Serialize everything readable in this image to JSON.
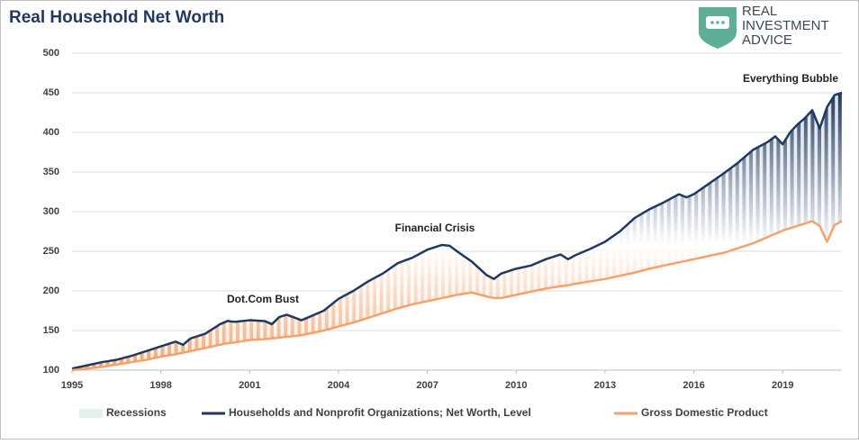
{
  "chart_data": {
    "type": "line",
    "title": "Real Household Net Worth",
    "logo": [
      "REAL",
      "INVESTMENT",
      "ADVICE"
    ],
    "x": [
      1995.0,
      1995.5,
      1996.0,
      1996.5,
      1997.0,
      1997.5,
      1998.0,
      1998.5,
      1998.75,
      1999.0,
      1999.5,
      2000.0,
      2000.25,
      2000.5,
      2001.0,
      2001.5,
      2001.75,
      2002.0,
      2002.25,
      2002.75,
      2003.0,
      2003.5,
      2004.0,
      2004.5,
      2005.0,
      2005.5,
      2006.0,
      2006.5,
      2007.0,
      2007.5,
      2007.75,
      2008.0,
      2008.5,
      2009.0,
      2009.25,
      2009.5,
      2010.0,
      2010.5,
      2011.0,
      2011.5,
      2011.75,
      2012.0,
      2012.5,
      2013.0,
      2013.5,
      2014.0,
      2014.5,
      2015.0,
      2015.5,
      2015.75,
      2016.0,
      2016.5,
      2017.0,
      2017.5,
      2018.0,
      2018.5,
      2018.75,
      2019.0,
      2019.25,
      2019.5,
      2019.75,
      2020.0,
      2020.25,
      2020.5,
      2020.75,
      2021.0
    ],
    "series": [
      {
        "name": "Households and Nonprofit Organizations; Net Worth, Level",
        "color": "#1f3a60",
        "values": [
          102,
          106,
          110,
          113,
          118,
          124,
          130,
          136,
          132,
          140,
          146,
          158,
          162,
          161,
          163,
          162,
          158,
          167,
          170,
          163,
          167,
          175,
          190,
          200,
          212,
          222,
          235,
          242,
          252,
          258,
          257,
          250,
          237,
          220,
          215,
          222,
          228,
          232,
          240,
          246,
          240,
          245,
          253,
          262,
          275,
          292,
          303,
          312,
          322,
          318,
          322,
          335,
          348,
          362,
          378,
          388,
          395,
          385,
          400,
          410,
          418,
          428,
          405,
          432,
          447,
          450
        ]
      },
      {
        "name": "Gross Domestic Product",
        "color": "#f4a26b",
        "values": [
          100,
          102,
          104,
          107,
          110,
          113,
          117,
          120,
          122,
          124,
          128,
          132,
          134,
          135,
          138,
          139,
          140,
          141,
          142,
          144,
          146,
          150,
          155,
          160,
          166,
          172,
          178,
          183,
          187,
          191,
          193,
          195,
          198,
          193,
          191,
          191,
          195,
          199,
          203,
          206,
          207,
          209,
          212,
          215,
          219,
          223,
          228,
          232,
          236,
          238,
          240,
          244,
          248,
          254,
          260,
          268,
          272,
          276,
          279,
          282,
          285,
          288,
          282,
          262,
          283,
          288
        ]
      }
    ],
    "recessions": {
      "name": "Recessions",
      "color": "#dff2ee"
    },
    "annotations": [
      "Dot.Com Bust",
      "Financial Crisis",
      "Everything Bubble"
    ],
    "xlim": [
      1995,
      2021
    ],
    "xticks": [
      1995,
      1998,
      2001,
      2004,
      2007,
      2010,
      2013,
      2016,
      2019
    ],
    "ylim": [
      100,
      500
    ],
    "yticks": [
      100,
      150,
      200,
      250,
      300,
      350,
      400,
      450,
      500
    ],
    "grid": true
  }
}
